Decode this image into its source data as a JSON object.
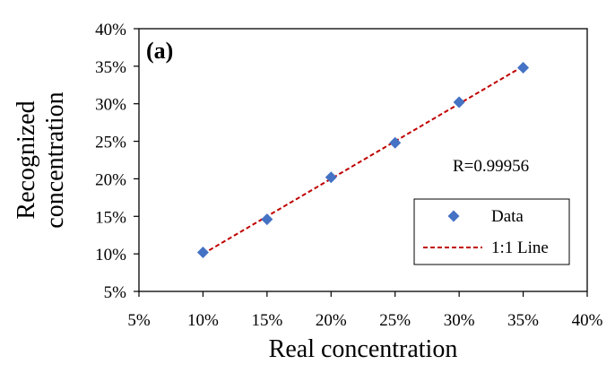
{
  "chart_data": {
    "type": "scatter",
    "panel_label": "(a)",
    "xlabel": "Real concentration",
    "ylabel_lines": [
      "Recognized",
      "concentration"
    ],
    "xlim": [
      0.05,
      0.4
    ],
    "ylim": [
      0.05,
      0.4
    ],
    "x_ticks": [
      "5%",
      "10%",
      "15%",
      "20%",
      "25%",
      "30%",
      "35%",
      "40%"
    ],
    "y_ticks": [
      "5%",
      "10%",
      "15%",
      "20%",
      "25%",
      "30%",
      "35%",
      "40%"
    ],
    "grid": false,
    "legend_position": "bottom-right",
    "annotation": "R=0.99956",
    "series": [
      {
        "name": "Data",
        "kind": "scatter",
        "marker": "diamond",
        "color": "#4472C4",
        "x": [
          0.1,
          0.15,
          0.2,
          0.25,
          0.3,
          0.35
        ],
        "y": [
          0.102,
          0.146,
          0.202,
          0.248,
          0.302,
          0.348
        ]
      },
      {
        "name": "1:1 Line",
        "kind": "line",
        "style": "dashed",
        "color": "#C00000",
        "x": [
          0.1,
          0.35
        ],
        "y": [
          0.1,
          0.35
        ]
      }
    ]
  }
}
